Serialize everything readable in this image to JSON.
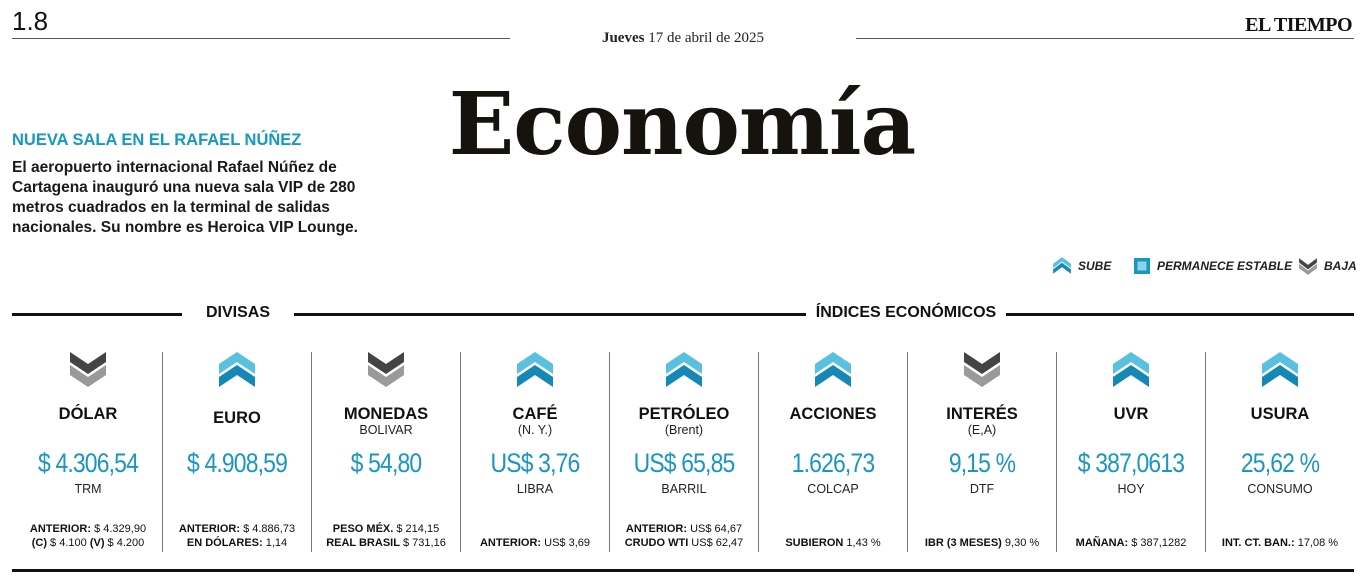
{
  "header": {
    "page_number": "1.8",
    "date_weekday": "Jueves",
    "date_rest": " 17 de abril de 2025",
    "brand": "EL TIEMPO",
    "section": "Economía"
  },
  "news": {
    "kicker": "NUEVA SALA EN EL RAFAEL NÚÑEZ",
    "body": "El aeropuerto internacional Rafael Núñez de Cartagena inauguró una nueva sala VIP de 280 metros cuadrados en la terminal de salidas nacionales. Su nombre es Heroica VIP Lounge."
  },
  "legend": {
    "up": "SUBE",
    "stable": "PERMANECE ESTABLE",
    "down": "BAJA"
  },
  "sections": {
    "divisas": "DIVISAS",
    "indices": "ÍNDICES ECONÓMICOS"
  },
  "colors": {
    "accent": "#1a96c4",
    "down": "#555555",
    "text": "#111111"
  },
  "indicators": [
    {
      "trend": "down",
      "name": "DÓLAR",
      "sub": "",
      "value": "$ 4.306,54",
      "unit": "TRM",
      "foot1_label": "ANTERIOR:",
      "foot1_value": " $ 4.329,90",
      "foot2_label": "(C)",
      "foot2_value": " $ 4.100 ",
      "foot3_label": "(V)",
      "foot3_value": " $ 4.200"
    },
    {
      "trend": "up",
      "name": "EURO",
      "sub": "",
      "value": "$ 4.908,59",
      "unit": "",
      "foot1_label": "ANTERIOR:",
      "foot1_value": " $ 4.886,73",
      "foot2_label": "EN DÓLARES:",
      "foot2_value": " 1,14"
    },
    {
      "trend": "down",
      "name": "MONEDAS",
      "sub": "BOLIVAR",
      "value": "$ 54,80",
      "unit": "",
      "foot1_label": "PESO MÉX.",
      "foot1_value": " $ 214,15",
      "foot2_label": "REAL BRASIL",
      "foot2_value": " $ 731,16"
    },
    {
      "trend": "up",
      "name": "CAFÉ",
      "sub": "(N. Y.)",
      "value": "US$ 3,76",
      "unit": "LIBRA",
      "foot1_label": "ANTERIOR:",
      "foot1_value": " US$ 3,69"
    },
    {
      "trend": "up",
      "name": "PETRÓLEO",
      "sub": "(Brent)",
      "value": "US$ 65,85",
      "unit": "BARRIL",
      "foot1_label": "ANTERIOR:",
      "foot1_value": " US$ 64,67",
      "foot2_label": "CRUDO WTI",
      "foot2_value": " US$ 62,47"
    },
    {
      "trend": "up",
      "name": "ACCIONES",
      "sub": "",
      "value": "1.626,73",
      "unit": "COLCAP",
      "foot1_label": "SUBIERON",
      "foot1_value": " 1,43 %"
    },
    {
      "trend": "down",
      "name": "INTERÉS",
      "sub": "(E,A)",
      "value": "9,15 %",
      "unit": "DTF",
      "foot1_label": "IBR (3 MESES)",
      "foot1_value": " 9,30 %"
    },
    {
      "trend": "up",
      "name": "UVR",
      "sub": "",
      "value": "$ 387,0613",
      "unit": "HOY",
      "foot1_label": "MAÑANA:",
      "foot1_value": " $ 387,1282"
    },
    {
      "trend": "up",
      "name": "USURA",
      "sub": "",
      "value": "25,62 %",
      "unit": "CONSUMO",
      "foot1_label": "INT. CT. BAN.:",
      "foot1_value": " 17,08 %"
    }
  ]
}
